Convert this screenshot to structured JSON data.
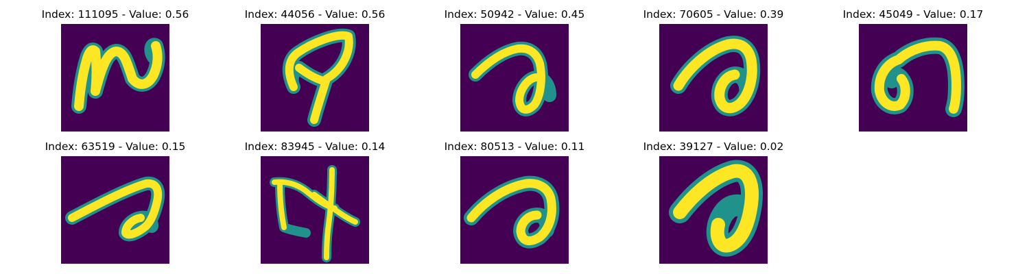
{
  "colors": {
    "background": "#440154",
    "glyph_outer": "#21918c",
    "glyph_inner": "#fde725"
  },
  "panels": [
    {
      "title": "Index: 111095 - Value: 0.56"
    },
    {
      "title": "Index: 44056 - Value: 0.56"
    },
    {
      "title": "Index: 50942 - Value: 0.45"
    },
    {
      "title": "Index: 70605 - Value: 0.39"
    },
    {
      "title": "Index: 45049 - Value: 0.17"
    },
    {
      "title": "Index: 63519 - Value: 0.15"
    },
    {
      "title": "Index: 83945 - Value: 0.14"
    },
    {
      "title": "Index: 80513 - Value: 0.11"
    },
    {
      "title": "Index: 39127 - Value: 0.02"
    }
  ]
}
